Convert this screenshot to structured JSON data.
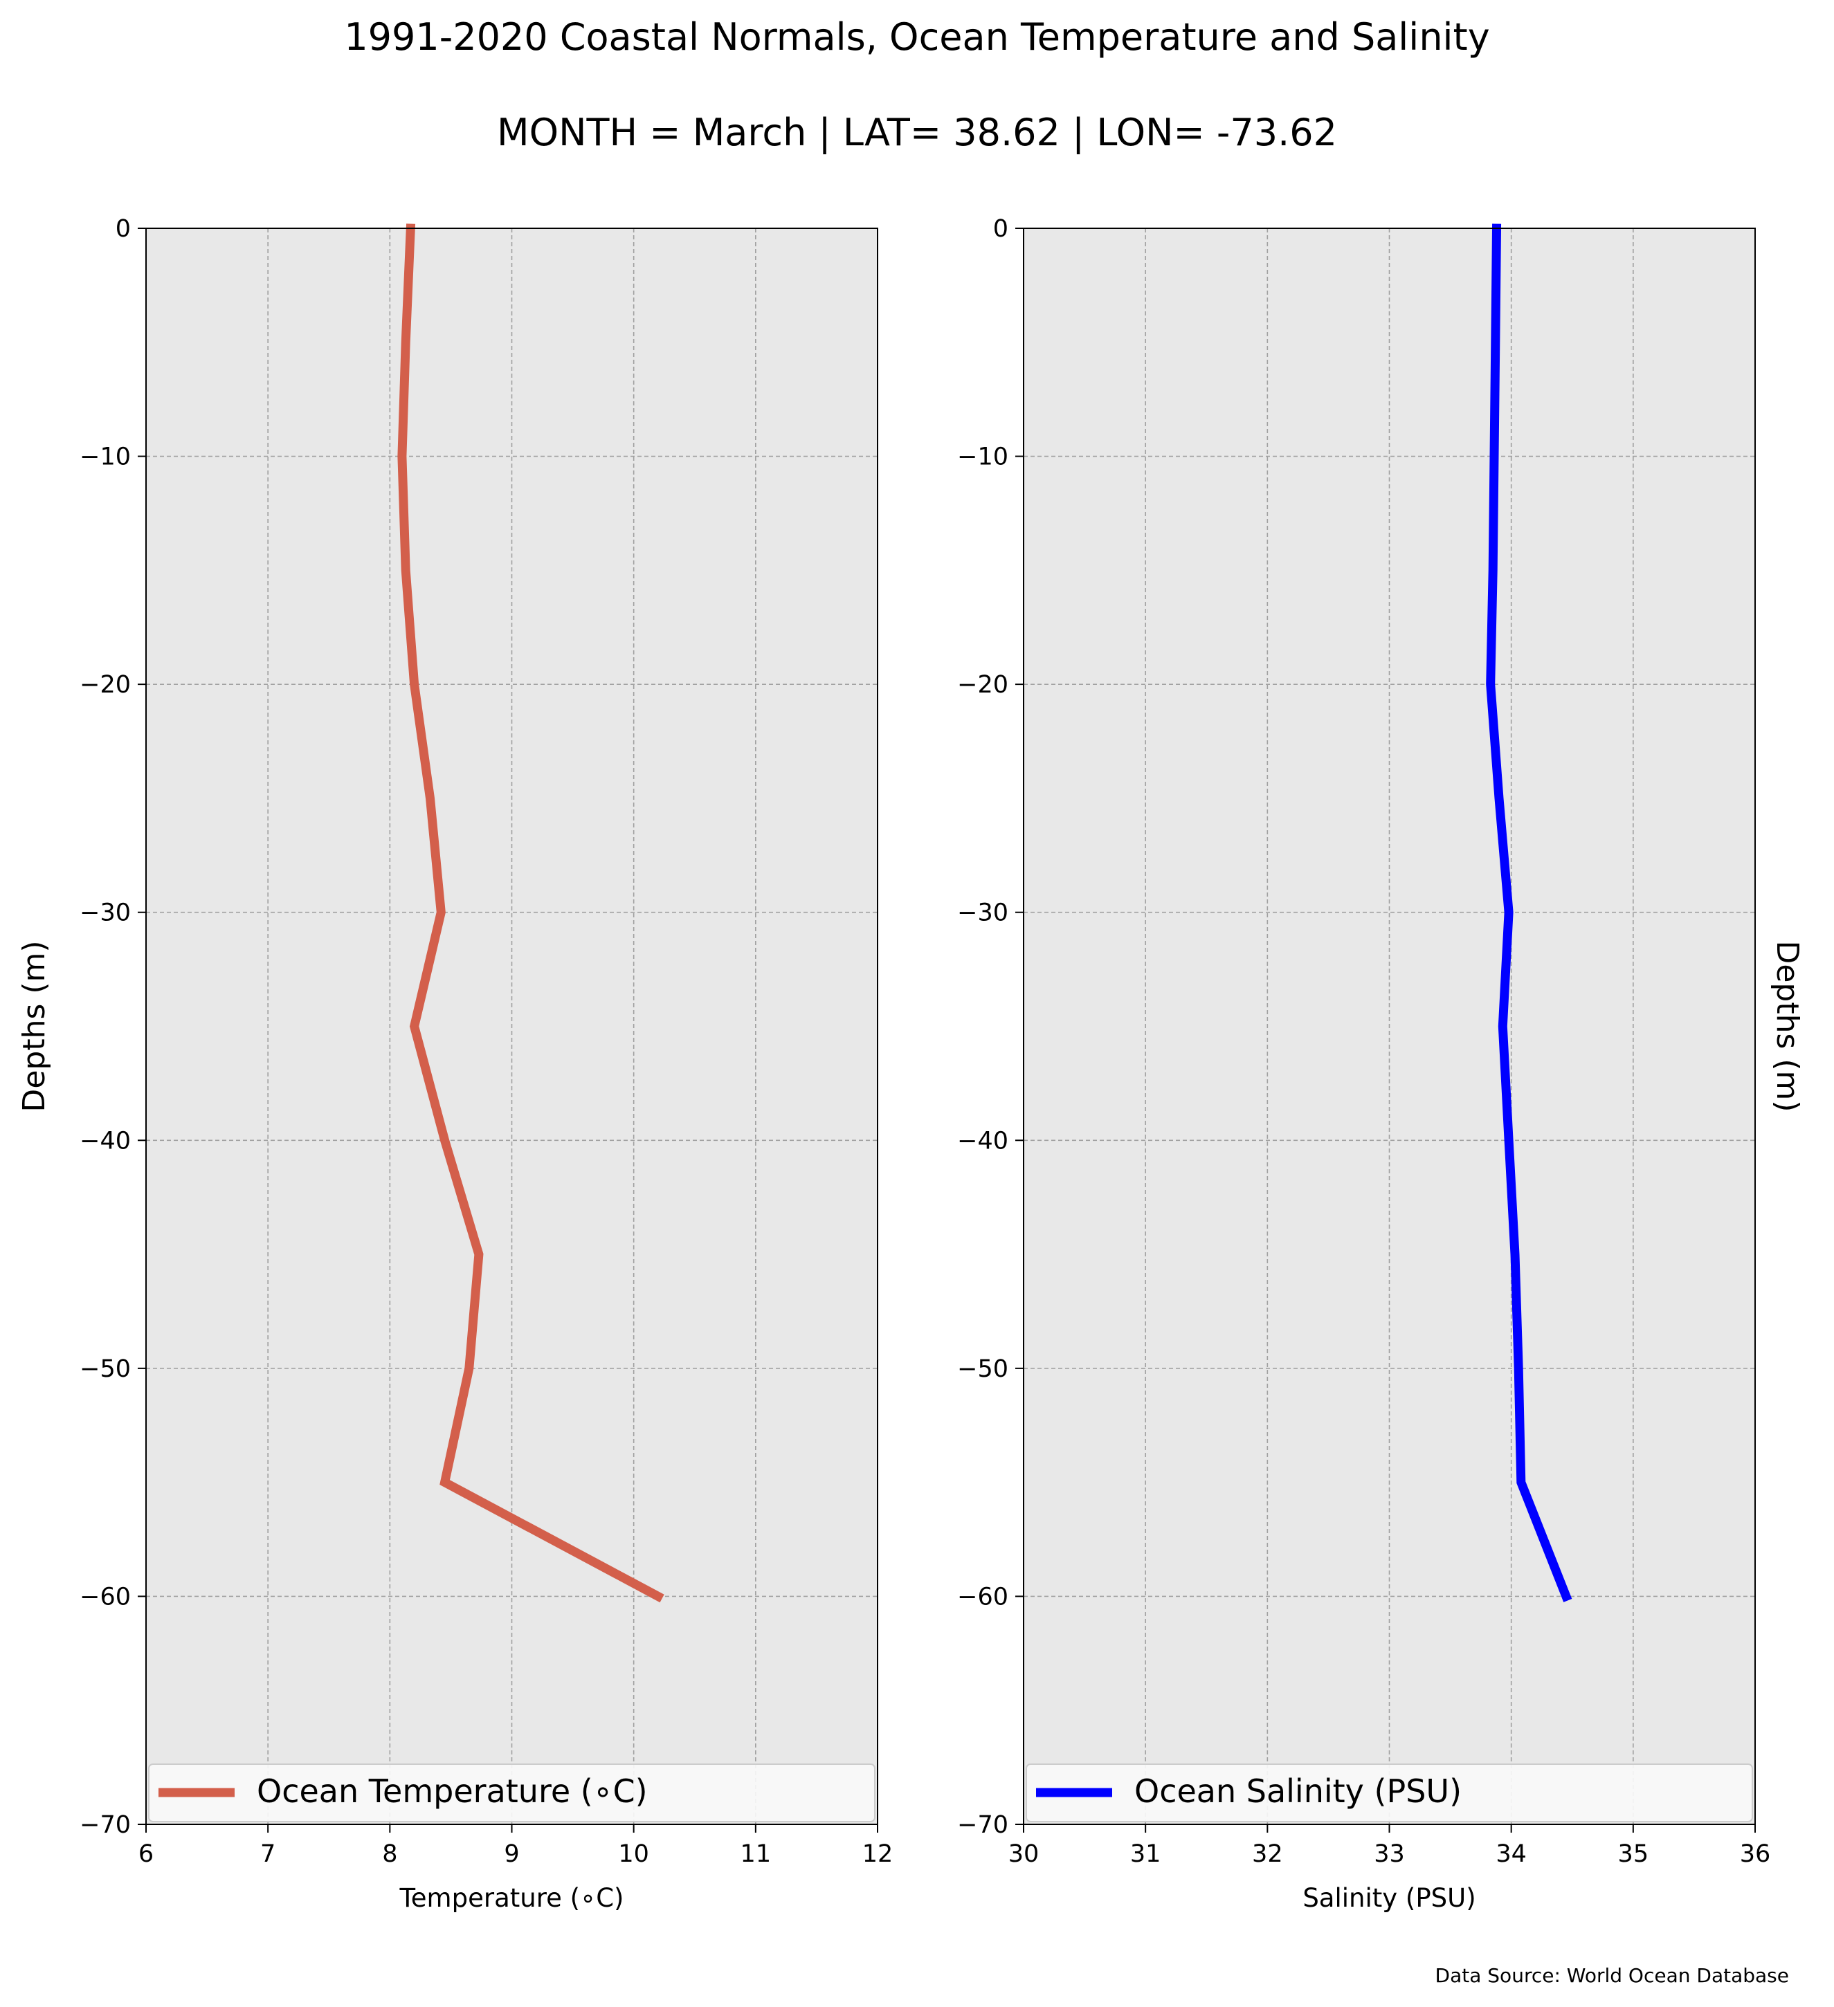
{
  "figure": {
    "title_line1": "1991-2020 Coastal Normals, Ocean Temperature and Salinity",
    "title_line2": "MONTH = March | LAT= 38.62 | LON= -73.62",
    "source": "Data Source: World Ocean Database"
  },
  "chart_data": [
    {
      "type": "line",
      "xlabel": "Temperature (∘C)",
      "ylabel": "Depths (m)",
      "ylabel_side": "left",
      "xlim": [
        6,
        12
      ],
      "ylim": [
        -70,
        0
      ],
      "xticks": [
        6,
        7,
        8,
        9,
        10,
        11,
        12
      ],
      "yticks": [
        0,
        -10,
        -20,
        -30,
        -40,
        -50,
        -60,
        -70
      ],
      "grid": true,
      "legend": "lower-center",
      "color": "#d35f4b",
      "series": [
        {
          "name": "Ocean Temperature (∘C)",
          "x": [
            8.17,
            8.13,
            8.1,
            8.13,
            8.2,
            8.33,
            8.42,
            8.2,
            8.45,
            8.73,
            8.65,
            8.45,
            10.2
          ],
          "y": [
            0,
            -5,
            -10,
            -15,
            -20,
            -25,
            -30,
            -35,
            -40,
            -45,
            -50,
            -55,
            -60
          ]
        }
      ]
    },
    {
      "type": "line",
      "xlabel": "Salinity (PSU)",
      "ylabel": "Depths (m)",
      "ylabel_side": "right",
      "xlim": [
        30,
        36
      ],
      "ylim": [
        -70,
        0
      ],
      "xticks": [
        30,
        31,
        32,
        33,
        34,
        35,
        36
      ],
      "yticks": [
        0,
        -10,
        -20,
        -30,
        -40,
        -50,
        -60,
        -70
      ],
      "grid": true,
      "legend": "lower-center",
      "color": "#0000ff",
      "series": [
        {
          "name": "Ocean Salinity (PSU)",
          "x": [
            33.88,
            33.87,
            33.86,
            33.85,
            33.83,
            33.9,
            33.98,
            33.93,
            33.98,
            34.03,
            34.06,
            34.08,
            34.45
          ],
          "y": [
            0,
            -5,
            -10,
            -15,
            -20,
            -25,
            -30,
            -35,
            -40,
            -45,
            -50,
            -55,
            -60
          ]
        }
      ]
    }
  ]
}
